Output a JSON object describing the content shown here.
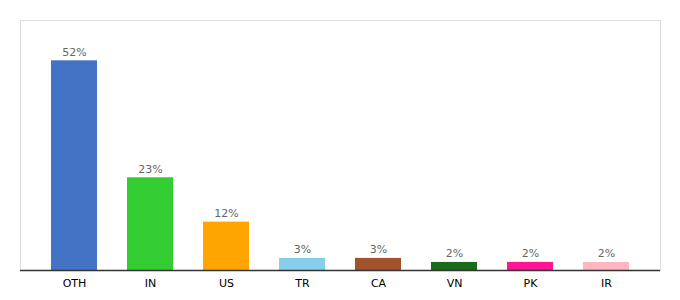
{
  "chart_data": {
    "type": "bar",
    "categories": [
      "OTH",
      "IN",
      "US",
      "TR",
      "CA",
      "VN",
      "PK",
      "IR"
    ],
    "values": [
      52,
      23,
      12,
      3,
      3,
      2,
      2,
      2
    ],
    "value_labels": [
      "52%",
      "23%",
      "12%",
      "3%",
      "3%",
      "2%",
      "2%",
      "2%"
    ],
    "colors": [
      "#4472C4",
      "#33CC33",
      "#FFA500",
      "#87CEEB",
      "#A0522D",
      "#1A6B1A",
      "#FF1493",
      "#FFB6C1"
    ],
    "ylim": [
      0,
      62
    ],
    "yticks": [],
    "grid": false,
    "data_labels": true,
    "tick_labels": "x"
  }
}
